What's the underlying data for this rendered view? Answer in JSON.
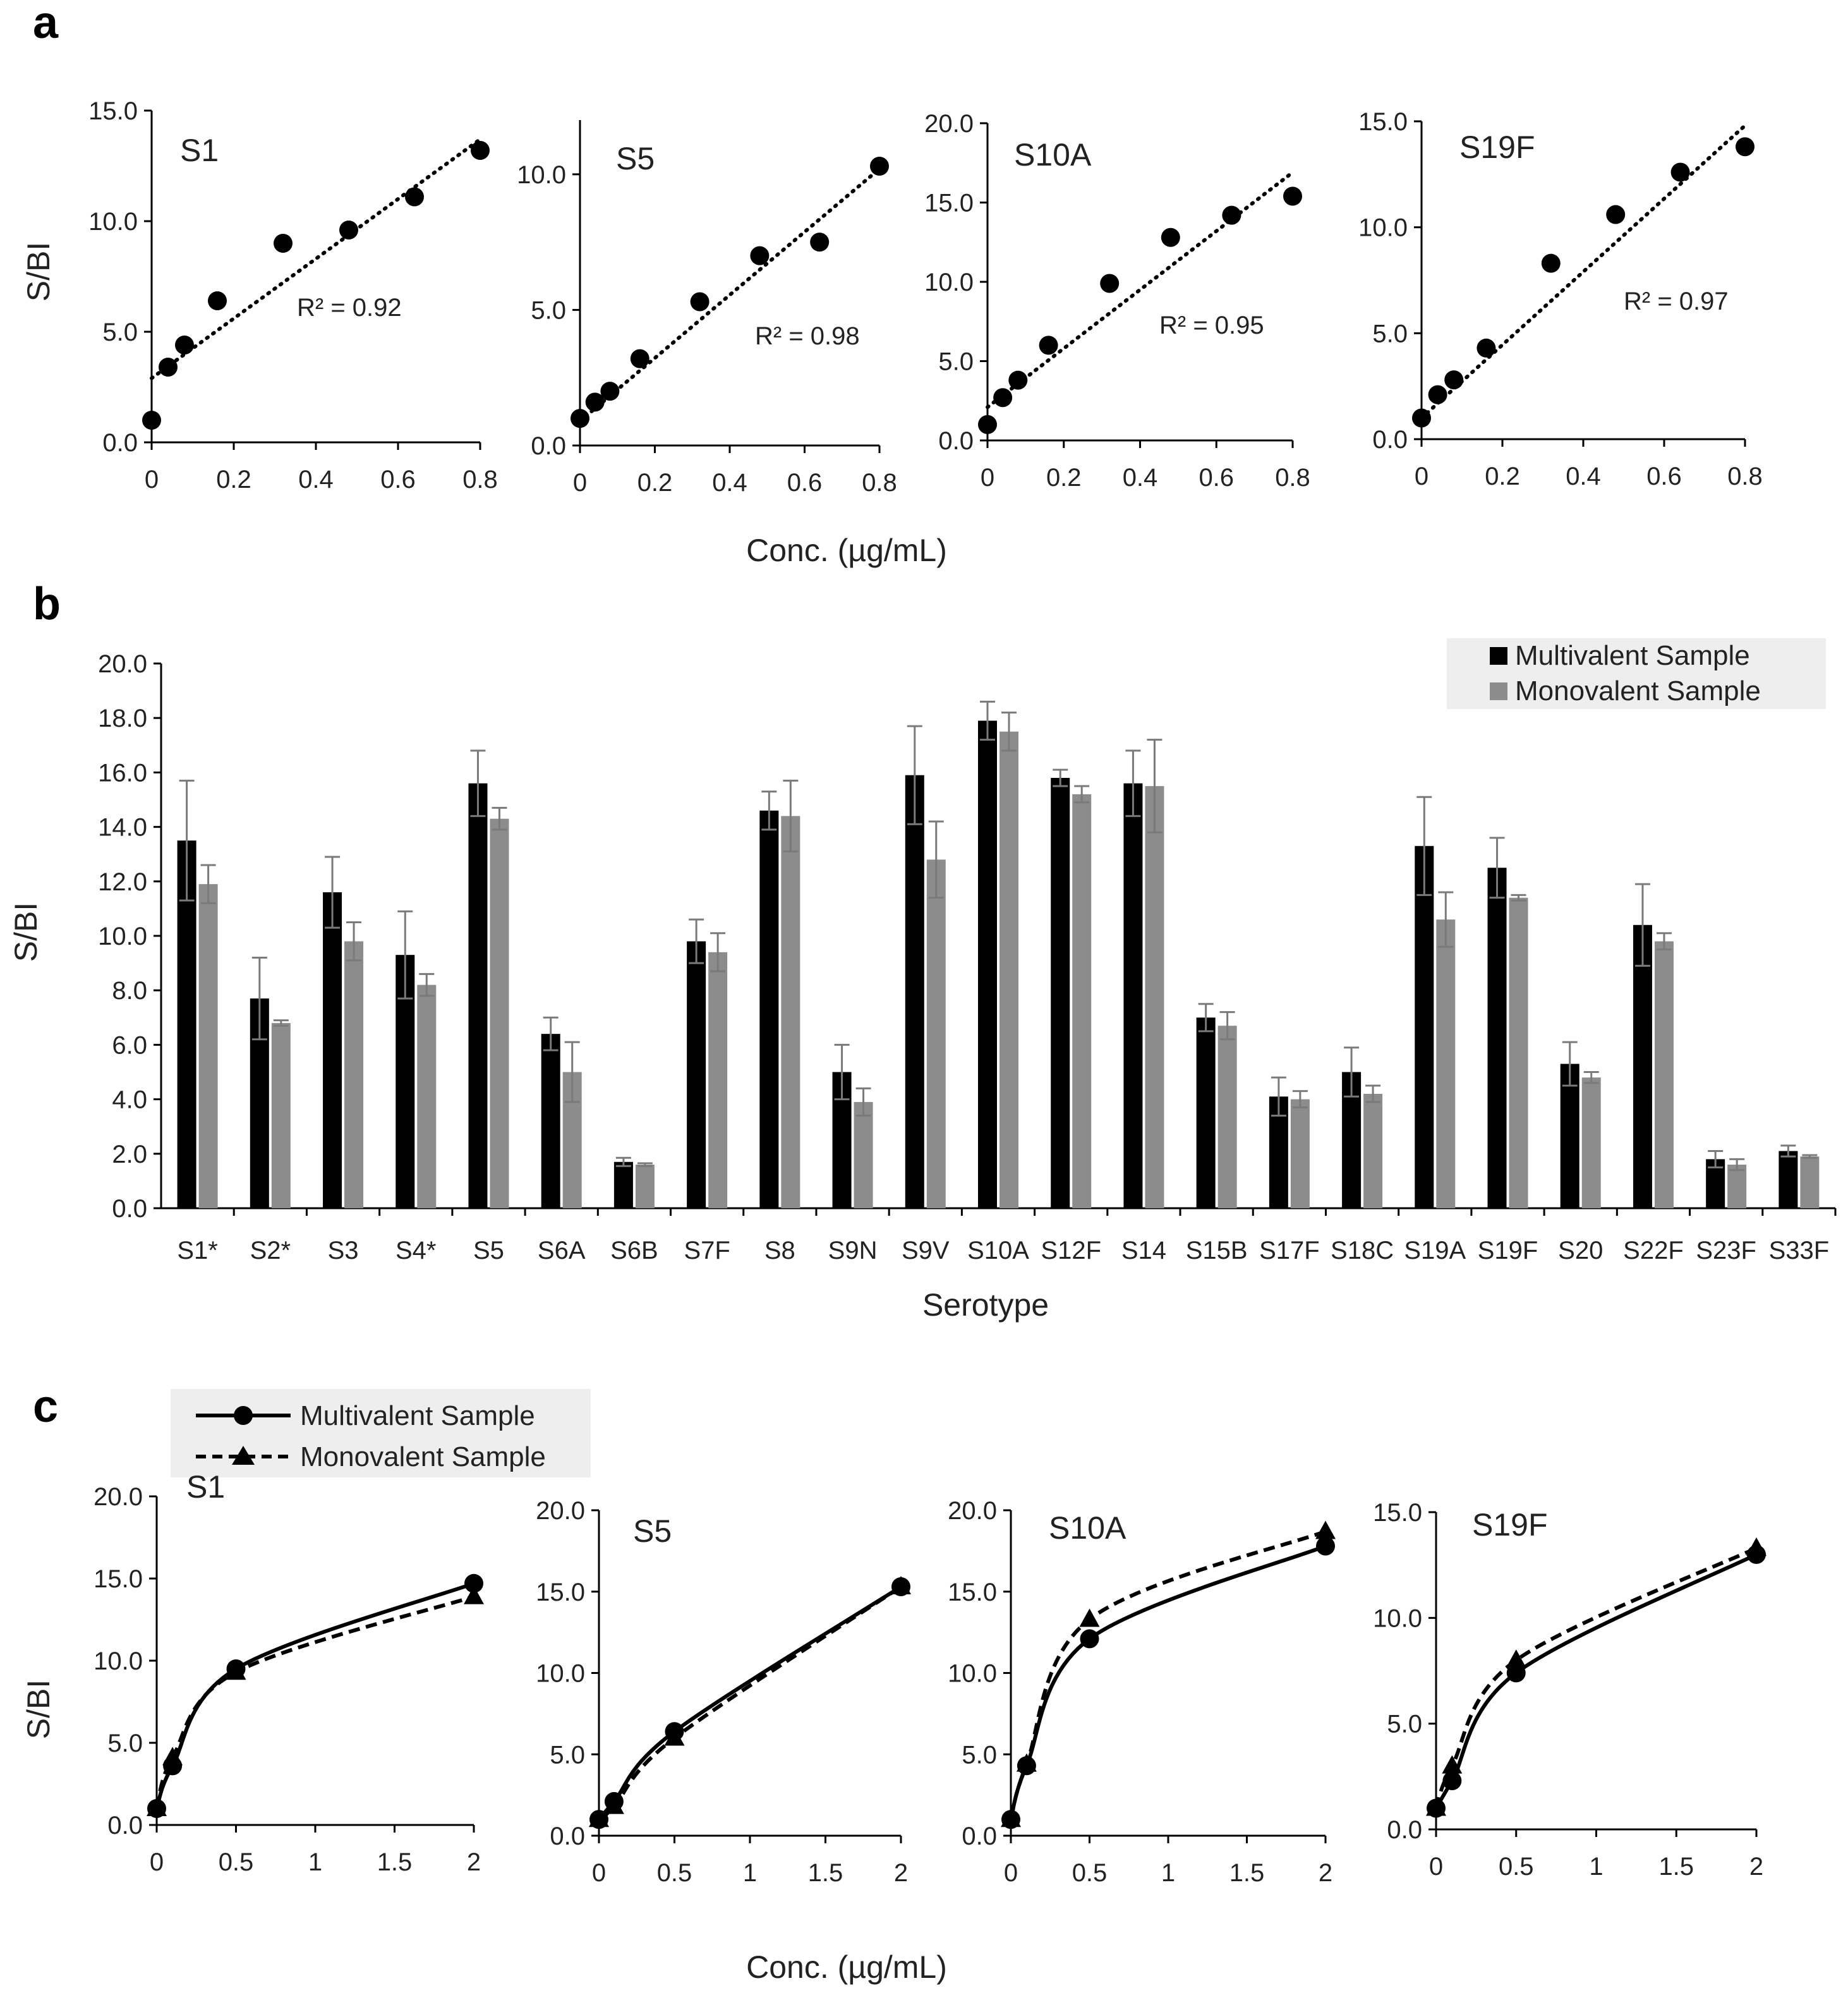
{
  "panel_a": {
    "letter": "a",
    "xlabel": "Conc. (µg/mL)",
    "ylabel": "S/BI"
  },
  "panel_b": {
    "letter": "b",
    "xlabel": "Serotype",
    "ylabel": "S/BI"
  },
  "panel_c": {
    "letter": "c",
    "xlabel": "Conc. (µg/mL)",
    "ylabel": "S/BI",
    "legend": [
      "Multivalent Sample",
      "Monovalent Sample"
    ]
  },
  "colors": {
    "multivalent": "#000000",
    "monovalent": "#8c8c8c",
    "legend_bg": "#eeeeee"
  },
  "chart_data": [
    {
      "id": "a-S1",
      "type": "scatter",
      "title": "S1",
      "r2_label": "R² = 0.92",
      "x": [
        0,
        0.04,
        0.08,
        0.16,
        0.32,
        0.48,
        0.64,
        0.8
      ],
      "y": [
        1.0,
        3.4,
        4.4,
        6.4,
        9.0,
        9.6,
        11.1,
        13.2
      ],
      "fit": [
        [
          0,
          2.9
        ],
        [
          0.8,
          13.7
        ]
      ],
      "ylim": [
        0,
        15
      ],
      "yticks": [
        "0.0",
        "5.0",
        "10.0",
        "15.0"
      ],
      "xticks": [
        "0",
        "0.2",
        "0.4",
        "0.6",
        "0.8"
      ],
      "xlim": [
        0,
        0.8
      ]
    },
    {
      "id": "a-S5",
      "type": "scatter",
      "title": "S5",
      "r2_label": "R² = 0.98",
      "x": [
        0,
        0.04,
        0.08,
        0.16,
        0.32,
        0.48,
        0.64,
        0.8
      ],
      "y": [
        1.0,
        1.6,
        2.0,
        3.2,
        5.3,
        7.0,
        7.5,
        10.3
      ],
      "fit": [
        [
          0,
          0.9
        ],
        [
          0.8,
          10.2
        ]
      ],
      "ylim": [
        0,
        12
      ],
      "yticks": [
        "0.0",
        "5.0",
        "10.0"
      ],
      "xticks": [
        "0",
        "0.2",
        "0.4",
        "0.6",
        "0.8"
      ],
      "xlim": [
        0,
        0.8
      ]
    },
    {
      "id": "a-S10A",
      "type": "scatter",
      "title": "S10A",
      "r2_label": "R² = 0.95",
      "x": [
        0,
        0.04,
        0.08,
        0.16,
        0.32,
        0.48,
        0.64,
        0.8
      ],
      "y": [
        1.0,
        2.7,
        3.8,
        6.0,
        9.9,
        12.8,
        14.2,
        15.4
      ],
      "fit": [
        [
          0,
          2.1
        ],
        [
          0.8,
          16.9
        ]
      ],
      "ylim": [
        0,
        20
      ],
      "yticks": [
        "0.0",
        "5.0",
        "10.0",
        "15.0",
        "20.0"
      ],
      "xticks": [
        "0",
        "0.2",
        "0.4",
        "0.6",
        "0.8"
      ],
      "xlim": [
        0,
        0.8
      ]
    },
    {
      "id": "a-S19F",
      "type": "scatter",
      "title": "S19F",
      "r2_label": "R² = 0.97",
      "x": [
        0,
        0.04,
        0.08,
        0.16,
        0.32,
        0.48,
        0.64,
        0.8
      ],
      "y": [
        1.0,
        2.1,
        2.8,
        4.3,
        8.3,
        10.6,
        12.6,
        13.8
      ],
      "fit": [
        [
          0,
          1.0
        ],
        [
          0.8,
          14.8
        ]
      ],
      "ylim": [
        0,
        15
      ],
      "yticks": [
        "0.0",
        "5.0",
        "10.0",
        "15.0"
      ],
      "xticks": [
        "0",
        "0.2",
        "0.4",
        "0.6",
        "0.8"
      ],
      "xlim": [
        0,
        0.8
      ]
    },
    {
      "id": "b",
      "type": "bar",
      "categories": [
        "S1*",
        "S2*",
        "S3",
        "S4*",
        "S5",
        "S6A",
        "S6B",
        "S7F",
        "S8",
        "S9N",
        "S9V",
        "S10A",
        "S12F",
        "S14",
        "S15B",
        "S17F",
        "S18C",
        "S19A",
        "S19F",
        "S20",
        "S22F",
        "S23F",
        "S33F"
      ],
      "series": [
        {
          "name": "Multivalent Sample",
          "values": [
            13.5,
            7.7,
            11.6,
            9.3,
            15.6,
            6.4,
            1.7,
            9.8,
            14.6,
            5.0,
            15.9,
            17.9,
            15.8,
            15.6,
            7.0,
            4.1,
            5.0,
            13.3,
            12.5,
            5.3,
            10.4,
            1.8,
            2.1
          ],
          "errors": [
            2.2,
            1.5,
            1.3,
            1.6,
            1.2,
            0.6,
            0.15,
            0.8,
            0.7,
            1.0,
            1.8,
            0.7,
            0.3,
            1.2,
            0.5,
            0.7,
            0.9,
            1.8,
            1.1,
            0.8,
            1.5,
            0.3,
            0.2
          ]
        },
        {
          "name": "Monovalent Sample",
          "values": [
            11.9,
            6.8,
            9.8,
            8.2,
            14.3,
            5.0,
            1.6,
            9.4,
            14.4,
            3.9,
            12.8,
            17.5,
            15.2,
            15.5,
            6.7,
            4.0,
            4.2,
            10.6,
            11.4,
            4.8,
            9.8,
            1.6,
            1.9
          ],
          "errors": [
            0.7,
            0.1,
            0.7,
            0.4,
            0.4,
            1.1,
            0.05,
            0.7,
            1.3,
            0.5,
            1.4,
            0.7,
            0.3,
            1.7,
            0.5,
            0.3,
            0.3,
            1.0,
            0.1,
            0.2,
            0.3,
            0.2,
            0.05
          ]
        }
      ],
      "ylim": [
        0,
        20
      ],
      "yticks": [
        "0.0",
        "2.0",
        "4.0",
        "6.0",
        "8.0",
        "10.0",
        "12.0",
        "14.0",
        "16.0",
        "18.0",
        "20.0"
      ]
    },
    {
      "id": "c-S1",
      "type": "line",
      "title": "S1",
      "x": [
        0,
        0.1,
        0.5,
        2
      ],
      "series": [
        {
          "name": "Multivalent Sample",
          "values": [
            1.0,
            3.6,
            9.5,
            14.7
          ]
        },
        {
          "name": "Monovalent Sample",
          "values": [
            1.0,
            4.1,
            9.3,
            13.9
          ]
        }
      ],
      "ylim": [
        0,
        20
      ],
      "yticks": [
        "0.0",
        "5.0",
        "10.0",
        "15.0",
        "20.0"
      ],
      "xticks": [
        "0",
        "0.5",
        "1",
        "1.5",
        "2"
      ],
      "xlim": [
        0,
        2
      ]
    },
    {
      "id": "c-S5",
      "type": "line",
      "title": "S5",
      "x": [
        0,
        0.1,
        0.5,
        2
      ],
      "series": [
        {
          "name": "Multivalent Sample",
          "values": [
            1.0,
            2.1,
            6.4,
            15.3
          ]
        },
        {
          "name": "Monovalent Sample",
          "values": [
            1.0,
            1.8,
            6.0,
            15.3
          ]
        }
      ],
      "ylim": [
        0,
        20
      ],
      "yticks": [
        "0.0",
        "5.0",
        "10.0",
        "15.0",
        "20.0"
      ],
      "xticks": [
        "0",
        "0.5",
        "1",
        "1.5",
        "2"
      ],
      "xlim": [
        0,
        2
      ]
    },
    {
      "id": "c-S10A",
      "type": "line",
      "title": "S10A",
      "x": [
        0,
        0.1,
        0.5,
        2
      ],
      "series": [
        {
          "name": "Multivalent Sample",
          "values": [
            1.0,
            4.3,
            12.1,
            17.8
          ]
        },
        {
          "name": "Monovalent Sample",
          "values": [
            1.0,
            4.4,
            13.3,
            18.7
          ]
        }
      ],
      "ylim": [
        0,
        20
      ],
      "yticks": [
        "0.0",
        "5.0",
        "10.0",
        "15.0",
        "20.0"
      ],
      "xticks": [
        "0",
        "0.5",
        "1",
        "1.5",
        "2"
      ],
      "xlim": [
        0,
        2
      ]
    },
    {
      "id": "c-S19F",
      "type": "line",
      "title": "S19F",
      "x": [
        0,
        0.1,
        0.5,
        2
      ],
      "series": [
        {
          "name": "Multivalent Sample",
          "values": [
            1.0,
            2.3,
            7.4,
            13.0
          ]
        },
        {
          "name": "Monovalent Sample",
          "values": [
            1.0,
            3.0,
            8.0,
            13.3
          ]
        }
      ],
      "ylim": [
        0,
        15
      ],
      "yticks": [
        "0.0",
        "5.0",
        "10.0",
        "15.0"
      ],
      "xticks": [
        "0",
        "0.5",
        "1",
        "1.5",
        "2"
      ],
      "xlim": [
        0,
        2
      ]
    }
  ]
}
